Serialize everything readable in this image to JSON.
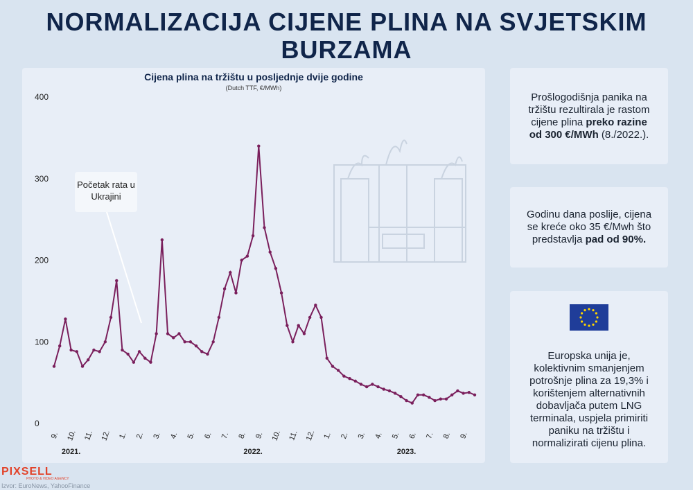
{
  "header": {
    "title": "NORMALIZACIJA CIJENE PLINA NA SVJETSKIM BURZAMA"
  },
  "chart_data": {
    "type": "line",
    "title": "Cijena plina na tržištu u posljednje dvije godine",
    "subtitle": "(Dutch TTF, €/MWh)",
    "categories": [
      "9.",
      null,
      null,
      "10.",
      null,
      null,
      "11.",
      null,
      null,
      "12.",
      null,
      null,
      "1.",
      null,
      null,
      "2.",
      null,
      null,
      "3.",
      null,
      null,
      "4.",
      null,
      null,
      "5.",
      null,
      null,
      "6.",
      null,
      null,
      "7.",
      null,
      null,
      "8.",
      null,
      null,
      "9.",
      null,
      null,
      "10.",
      null,
      null,
      "11.",
      null,
      null,
      "12.",
      null,
      null,
      "1.",
      null,
      null,
      "2.",
      null,
      null,
      "3.",
      null,
      null,
      "4.",
      null,
      null,
      "5.",
      null,
      null,
      "6.",
      null,
      null,
      "7.",
      null,
      null,
      "8.",
      null,
      null,
      "9.",
      null,
      null
    ],
    "year_labels": [
      "2021.",
      "2022.",
      "2023."
    ],
    "series": [
      {
        "name": "Dutch TTF",
        "color": "#7a1f5c",
        "values": [
          70,
          95,
          128,
          90,
          88,
          70,
          78,
          90,
          88,
          100,
          130,
          175,
          90,
          85,
          75,
          88,
          80,
          75,
          110,
          225,
          110,
          105,
          110,
          100,
          100,
          95,
          88,
          85,
          100,
          130,
          165,
          185,
          160,
          200,
          205,
          230,
          340,
          240,
          210,
          190,
          160,
          120,
          100,
          120,
          110,
          130,
          145,
          130,
          80,
          70,
          65,
          58,
          55,
          52,
          48,
          45,
          48,
          45,
          42,
          40,
          37,
          33,
          28,
          25,
          35,
          35,
          32,
          28,
          30,
          30,
          35,
          40,
          37,
          38,
          35
        ]
      }
    ],
    "ylim": [
      0,
      400
    ],
    "yticks": [
      0,
      100,
      200,
      300,
      400
    ],
    "grid": false,
    "annotation": "Početak rata u Ukrajini"
  },
  "panels": [
    {
      "parts": [
        "Prošlogodišnja panika na tržištu rezultirala je rastom cijene plina ",
        "preko razine od 300 €/MWh",
        " (8./2022.)."
      ]
    },
    {
      "parts": [
        "Godinu dana poslije, cijena se kreće oko 35 €/Mwh što predstavlja ",
        "pad od 90%."
      ]
    },
    {
      "parts": [
        "Europska unija je, kolektivnim smanjenjem potrošnje plina za 19,3% i korištenjem alternativnih dobavljača putem LNG terminala, uspjela primiriti paniku na tržištu i normalizirati cijenu plina."
      ]
    }
  ],
  "footer": {
    "logo": "PIXSELL",
    "tagline": "PHOTO & VIDEO AGENCY",
    "source": "Izvor: EuroNews, YahooFinance"
  }
}
